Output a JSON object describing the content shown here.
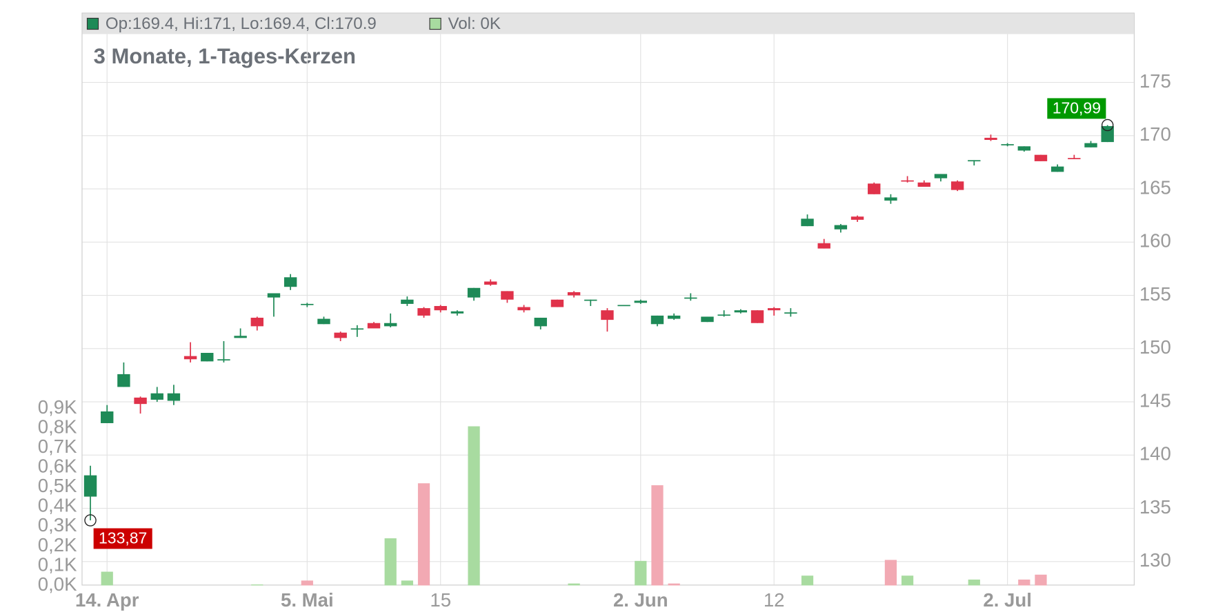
{
  "chart_data": {
    "type": "candlestick",
    "title": "3 Monate, 1-Tages-Kerzen",
    "legend": [
      {
        "label": "Op:169.4, Hi:171, Lo:169.4, Cl:170.9",
        "color": "#1e8a57"
      },
      {
        "label": "Vol: 0K",
        "color": "#a8dba0"
      }
    ],
    "categories": [
      null,
      "14. Apr",
      null,
      null,
      null,
      null,
      null,
      null,
      null,
      null,
      null,
      null,
      null,
      "5. Mai",
      null,
      null,
      null,
      null,
      null,
      null,
      null,
      "15",
      null,
      null,
      null,
      null,
      null,
      null,
      null,
      null,
      null,
      null,
      null,
      "2. Jun",
      null,
      null,
      null,
      null,
      null,
      null,
      null,
      "12",
      null,
      null,
      null,
      null,
      null,
      null,
      null,
      null,
      null,
      null,
      null,
      null,
      null,
      "2. Jul",
      null,
      null,
      null,
      null,
      null,
      null
    ],
    "open": [
      136.1,
      143.0,
      146.4,
      145.4,
      145.2,
      145.1,
      149.3,
      148.8,
      148.9,
      151.0,
      152.9,
      154.8,
      155.8,
      154.1,
      152.3,
      151.5,
      151.8,
      152.4,
      152.1,
      154.2,
      153.8,
      154.0,
      153.3,
      154.8,
      156.3,
      155.4,
      153.9,
      152.1,
      154.6,
      155.3,
      154.5,
      153.6,
      154.0,
      154.3,
      152.3,
      152.8,
      154.7,
      152.5,
      153.1,
      153.4,
      153.6,
      153.8,
      153.3,
      161.5,
      159.9,
      161.2,
      162.4,
      165.5,
      163.9,
      165.8,
      165.6,
      166.0,
      165.7,
      167.6,
      169.8,
      169.1,
      168.6,
      168.2,
      166.6,
      167.9,
      168.9,
      169.4
    ],
    "high": [
      139.0,
      144.7,
      148.7,
      145.5,
      146.4,
      146.6,
      150.6,
      149.6,
      150.7,
      151.9,
      153.0,
      155.2,
      157.0,
      154.3,
      153.0,
      151.6,
      152.2,
      152.5,
      153.3,
      154.9,
      153.9,
      154.1,
      153.6,
      155.7,
      156.5,
      155.4,
      154.1,
      152.9,
      154.6,
      155.4,
      154.6,
      153.8,
      154.1,
      154.6,
      153.1,
      153.3,
      155.2,
      153.0,
      153.6,
      153.7,
      153.6,
      153.9,
      153.8,
      162.6,
      160.3,
      161.7,
      162.5,
      165.6,
      164.5,
      166.2,
      165.8,
      166.4,
      165.8,
      167.7,
      170.1,
      169.3,
      169.0,
      168.2,
      167.3,
      168.2,
      169.5,
      170.99
    ],
    "low": [
      133.87,
      143.0,
      146.4,
      143.9,
      145.0,
      144.7,
      148.7,
      148.8,
      148.7,
      151.0,
      151.7,
      153.0,
      155.5,
      153.9,
      152.3,
      150.7,
      151.1,
      151.9,
      152.0,
      154.0,
      152.9,
      153.4,
      153.1,
      154.5,
      155.9,
      154.3,
      153.4,
      151.8,
      153.9,
      154.8,
      154.0,
      151.6,
      154.0,
      154.2,
      152.1,
      152.7,
      154.5,
      152.5,
      153.0,
      153.3,
      152.4,
      153.1,
      153.0,
      161.5,
      159.4,
      160.9,
      161.9,
      164.5,
      163.6,
      165.6,
      165.2,
      165.7,
      164.8,
      167.2,
      169.5,
      169.0,
      168.5,
      167.6,
      166.6,
      167.8,
      168.9,
      169.4
    ],
    "close": [
      138.1,
      144.1,
      147.6,
      144.8,
      145.8,
      145.8,
      149.0,
      149.6,
      149.0,
      151.2,
      152.1,
      155.2,
      156.7,
      154.2,
      152.8,
      151.0,
      151.9,
      151.9,
      152.4,
      154.6,
      153.1,
      153.6,
      153.5,
      155.7,
      156.0,
      154.6,
      153.6,
      152.9,
      153.9,
      155.0,
      154.6,
      152.7,
      154.1,
      154.5,
      153.1,
      153.1,
      154.8,
      153.0,
      153.2,
      153.6,
      152.4,
      153.6,
      153.4,
      162.2,
      159.4,
      161.6,
      162.1,
      164.5,
      164.2,
      165.7,
      165.2,
      166.4,
      164.9,
      167.7,
      169.6,
      169.2,
      169.0,
      167.6,
      167.1,
      167.8,
      169.3,
      170.9
    ],
    "up_color": "#1e8a57",
    "down_color": "#e0324a",
    "ylim": [
      127.83,
      181.55
    ],
    "yticks": [
      130,
      135,
      140,
      145,
      150,
      155,
      160,
      165,
      170,
      175
    ],
    "grid": true,
    "volume": {
      "values": [
        null,
        0.07,
        null,
        null,
        null,
        null,
        null,
        null,
        null,
        null,
        0.005,
        null,
        null,
        0.025,
        null,
        null,
        null,
        null,
        0.24,
        0.025,
        0.52,
        null,
        null,
        0.81,
        null,
        null,
        null,
        null,
        null,
        0.01,
        null,
        null,
        null,
        0.125,
        0.51,
        0.01,
        null,
        null,
        null,
        null,
        null,
        null,
        null,
        0.05,
        null,
        null,
        null,
        null,
        0.13,
        0.05,
        null,
        null,
        null,
        0.03,
        null,
        null,
        0.03,
        0.055,
        null,
        null,
        null,
        null
      ],
      "colors": [
        null,
        "#a8dba0",
        null,
        null,
        null,
        null,
        null,
        null,
        null,
        null,
        "#a8dba0",
        null,
        null,
        "#f2a9b3",
        null,
        null,
        null,
        null,
        "#a8dba0",
        "#a8dba0",
        "#f2a9b3",
        null,
        null,
        "#a8dba0",
        null,
        null,
        null,
        null,
        null,
        "#a8dba0",
        null,
        null,
        null,
        "#a8dba0",
        "#f2a9b3",
        "#f2a9b3",
        null,
        null,
        null,
        null,
        null,
        null,
        null,
        "#a8dba0",
        null,
        null,
        null,
        null,
        "#f2a9b3",
        "#a8dba0",
        null,
        null,
        null,
        "#a8dba0",
        null,
        null,
        "#f2a9b3",
        "#f2a9b3",
        null,
        null,
        null,
        null
      ],
      "ylim": [
        0,
        2.915
      ],
      "yticks": [
        {
          "value": 0,
          "label": "0,0K"
        },
        {
          "value": 0.1,
          "label": "0,1K"
        },
        {
          "value": 0.2,
          "label": "0,2K"
        },
        {
          "value": 0.3,
          "label": "0,3K"
        },
        {
          "value": 0.4,
          "label": "0,4K"
        },
        {
          "value": 0.5,
          "label": "0,5K"
        },
        {
          "value": 0.6,
          "label": "0,6K"
        },
        {
          "value": 0.7,
          "label": "0,7K"
        },
        {
          "value": 0.8,
          "label": "0,8K"
        },
        {
          "value": 0.9,
          "label": "0,9K"
        }
      ]
    },
    "annotations": [
      {
        "value": 133.87,
        "label": "133,87",
        "color": "#cc0000",
        "at": "min"
      },
      {
        "value": 170.99,
        "label": "170,99",
        "color": "#009900",
        "at": "max"
      }
    ]
  }
}
